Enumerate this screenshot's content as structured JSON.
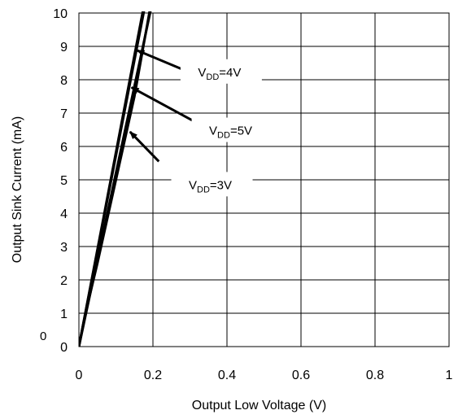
{
  "chart_data": {
    "type": "line",
    "title": "",
    "xlabel": "Output Low Voltage (V)",
    "ylabel": "Output Sink Current (mA)",
    "xlim": [
      0,
      1
    ],
    "ylim": [
      0,
      10
    ],
    "x_ticks": [
      {
        "value": 0,
        "label": "0"
      },
      {
        "value": 0.2,
        "label": "0.2"
      },
      {
        "value": 0.4,
        "label": "0.4"
      },
      {
        "value": 0.6,
        "label": "0.6"
      },
      {
        "value": 0.8,
        "label": "0.8"
      },
      {
        "value": 1,
        "label": "1"
      }
    ],
    "y_ticks": [
      {
        "value": 0,
        "label": "0"
      },
      {
        "value": 1,
        "label": "1"
      },
      {
        "value": 2,
        "label": "2"
      },
      {
        "value": 3,
        "label": "3"
      },
      {
        "value": 4,
        "label": "4"
      },
      {
        "value": 5,
        "label": "5"
      },
      {
        "value": 6,
        "label": "6"
      },
      {
        "value": 7,
        "label": "7"
      },
      {
        "value": 8,
        "label": "8"
      },
      {
        "value": 9,
        "label": "9"
      },
      {
        "value": 10,
        "label": "10"
      }
    ],
    "extra_label": "0",
    "grid": true,
    "series": [
      {
        "x": [
          0,
          0.18
        ],
        "y": [
          0,
          10.3
        ]
      },
      {
        "x": [
          0,
          0.177
        ],
        "y": [
          0,
          10.3
        ]
      },
      {
        "x": [
          0,
          0.198
        ],
        "y": [
          0,
          10.3
        ]
      },
      {
        "x": [
          0,
          0.02,
          0.05,
          0.1,
          0.15,
          0.195
        ],
        "y": [
          0,
          1.1,
          2.5,
          5.0,
          7.5,
          10.3
        ]
      }
    ],
    "annotations": [
      {
        "text_main": "V",
        "text_sub": "DD",
        "text_tail": "=4V",
        "label_at": [
          0.38,
          8.2
        ],
        "arrow_from": [
          0.293,
          8.25
        ],
        "arrow_to": [
          0.157,
          8.88
        ]
      },
      {
        "text_main": "V",
        "text_sub": "DD",
        "text_tail": "=5V",
        "label_at": [
          0.41,
          6.45
        ],
        "arrow_from": [
          0.32,
          6.7
        ],
        "arrow_to": [
          0.142,
          7.77
        ]
      },
      {
        "text_main": "V",
        "text_sub": "DD",
        "text_tail": "=3V",
        "label_at": [
          0.355,
          4.82
        ],
        "arrow_from": [
          0.216,
          5.55
        ],
        "arrow_to": [
          0.138,
          6.44
        ]
      }
    ]
  }
}
